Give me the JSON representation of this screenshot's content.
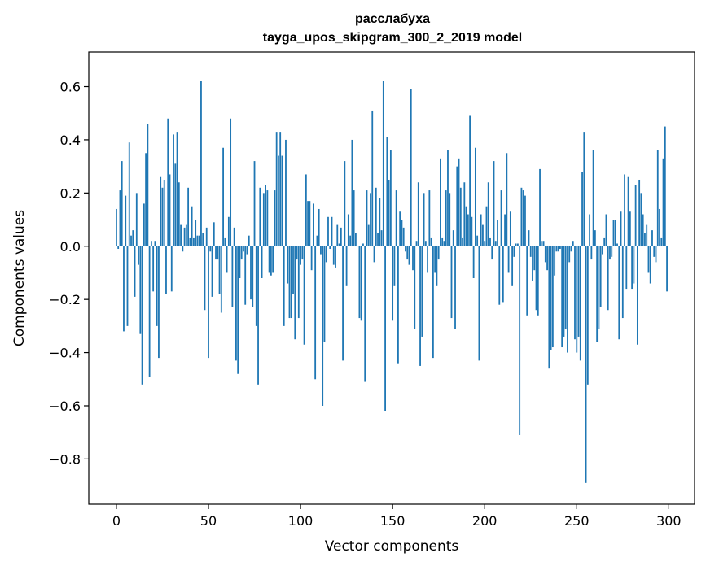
{
  "chart_data": {
    "type": "bar",
    "title_line1": "расслабуха",
    "title_line2": "tayga_upos_skipgram_300_2_2019 model",
    "xlabel": "Vector components",
    "ylabel": "Components values",
    "xlim": [
      -15,
      314
    ],
    "ylim": [
      -0.97,
      0.73
    ],
    "xticks": [
      0,
      50,
      100,
      150,
      200,
      250,
      300
    ],
    "yticks": [
      -0.8,
      -0.6,
      -0.4,
      -0.2,
      0.0,
      0.2,
      0.4,
      0.6
    ],
    "ytick_labels": [
      "−0.8",
      "−0.6",
      "−0.4",
      "−0.2",
      "0.0",
      "0.2",
      "0.4",
      "0.6"
    ],
    "bar_color": "#1f77b4",
    "values": [
      0.14,
      -0.01,
      0.21,
      0.32,
      -0.32,
      0.19,
      -0.3,
      0.39,
      0.04,
      0.06,
      -0.19,
      0.2,
      -0.07,
      -0.33,
      -0.52,
      0.16,
      0.35,
      0.46,
      -0.49,
      0.02,
      -0.17,
      0.02,
      -0.3,
      -0.42,
      0.26,
      0.22,
      0.25,
      -0.18,
      0.48,
      0.27,
      -0.17,
      0.42,
      0.31,
      0.43,
      0.24,
      0.08,
      -0.02,
      0.07,
      0.08,
      0.22,
      0.03,
      0.15,
      0.03,
      0.1,
      0.04,
      0.04,
      0.62,
      0.05,
      -0.24,
      0.07,
      -0.42,
      -0.02,
      -0.19,
      0.09,
      -0.05,
      -0.05,
      -0.18,
      -0.25,
      0.37,
      0.03,
      -0.1,
      0.11,
      0.48,
      -0.23,
      0.07,
      -0.43,
      -0.48,
      -0.12,
      -0.05,
      -0.02,
      -0.22,
      -0.03,
      0.04,
      -0.2,
      -0.23,
      0.32,
      -0.3,
      -0.52,
      0.22,
      -0.12,
      0.2,
      0.23,
      0.21,
      -0.1,
      -0.11,
      -0.1,
      0.21,
      0.43,
      0.34,
      0.43,
      0.34,
      -0.3,
      0.4,
      -0.14,
      -0.27,
      -0.27,
      -0.18,
      -0.35,
      -0.05,
      -0.27,
      -0.07,
      -0.05,
      -0.37,
      0.27,
      0.17,
      0.17,
      -0.09,
      0.16,
      -0.5,
      0.04,
      0.14,
      -0.03,
      -0.6,
      -0.36,
      -0.06,
      0.11,
      -0.01,
      0.11,
      -0.07,
      -0.08,
      0.08,
      0.01,
      0.07,
      -0.43,
      0.32,
      -0.15,
      0.12,
      0.04,
      0.4,
      0.21,
      0.05,
      0.0,
      -0.27,
      -0.28,
      0.01,
      -0.51,
      0.21,
      0.08,
      0.2,
      0.51,
      -0.06,
      0.22,
      0.05,
      0.18,
      0.06,
      0.62,
      -0.62,
      0.41,
      0.25,
      0.36,
      -0.28,
      -0.15,
      0.21,
      -0.44,
      0.13,
      0.1,
      0.07,
      -0.02,
      -0.05,
      -0.07,
      0.59,
      -0.09,
      -0.31,
      0.02,
      0.24,
      -0.45,
      -0.34,
      0.2,
      0.02,
      -0.1,
      0.21,
      0.03,
      -0.42,
      -0.1,
      -0.15,
      -0.05,
      0.33,
      0.03,
      0.02,
      0.21,
      0.36,
      0.2,
      -0.27,
      0.06,
      -0.31,
      0.3,
      0.33,
      0.22,
      0.03,
      0.24,
      0.15,
      0.12,
      0.49,
      0.11,
      -0.12,
      0.37,
      0.04,
      -0.43,
      0.12,
      0.08,
      0.02,
      0.15,
      0.24,
      0.03,
      -0.05,
      0.32,
      0.02,
      0.1,
      -0.22,
      0.21,
      -0.21,
      0.12,
      0.35,
      -0.1,
      0.13,
      -0.15,
      -0.04,
      0.01,
      0.01,
      -0.71,
      0.22,
      0.21,
      0.19,
      -0.26,
      0.06,
      -0.04,
      -0.13,
      -0.09,
      -0.24,
      -0.26,
      0.29,
      0.02,
      0.02,
      -0.06,
      -0.09,
      -0.46,
      -0.39,
      -0.38,
      -0.11,
      -0.02,
      -0.02,
      -0.01,
      -0.38,
      -0.34,
      -0.31,
      -0.4,
      -0.06,
      -0.02,
      0.02,
      -0.35,
      -0.4,
      -0.34,
      -0.43,
      0.28,
      0.43,
      -0.89,
      -0.52,
      0.12,
      -0.05,
      0.36,
      0.06,
      -0.36,
      -0.31,
      -0.23,
      -0.03,
      0.03,
      0.12,
      -0.24,
      -0.05,
      -0.04,
      0.1,
      0.1,
      0.01,
      -0.35,
      0.13,
      -0.27,
      0.27,
      -0.16,
      0.26,
      0.13,
      -0.16,
      -0.14,
      0.23,
      -0.37,
      0.25,
      0.2,
      0.12,
      0.05,
      0.08,
      -0.1,
      -0.14,
      0.06,
      -0.04,
      -0.06,
      0.36,
      0.14,
      0.03,
      0.33,
      0.45,
      -0.17
    ]
  }
}
